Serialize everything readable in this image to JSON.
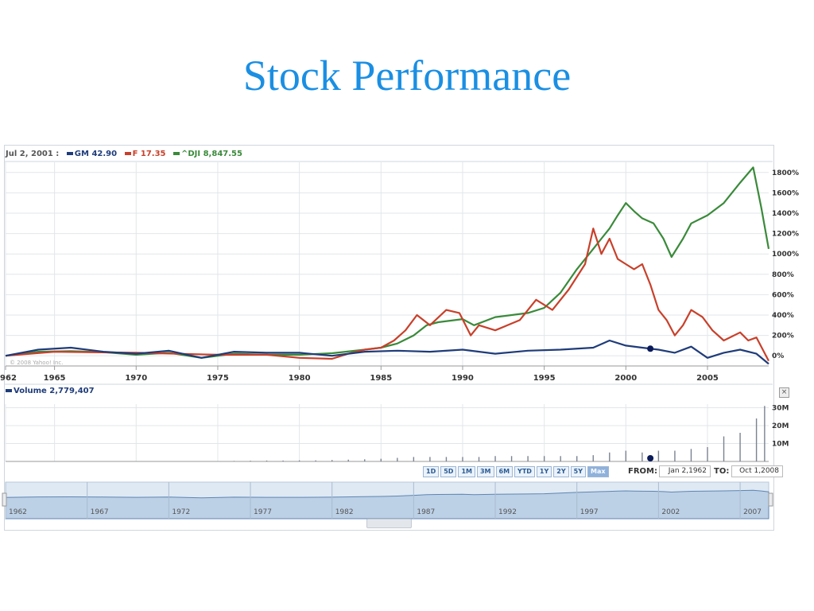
{
  "title": "Stock Performance",
  "legend": {
    "date": "Jul 2, 2001 :",
    "items": [
      {
        "label": "GM 42.90",
        "color": "#1f3c7a"
      },
      {
        "label": "F 17.35",
        "color": "#c8402a"
      },
      {
        "label": "^DJI 8,847.55",
        "color": "#3a8a3a"
      }
    ]
  },
  "watermark": "© 2008 Yahoo! Inc.",
  "volume_legend": "Volume 2,779,407",
  "close_glyph": "×",
  "controls": {
    "ranges": [
      "1D",
      "5D",
      "1M",
      "3M",
      "6M",
      "YTD",
      "1Y",
      "2Y",
      "5Y",
      "Max"
    ],
    "active_range": "Max",
    "from_label": "FROM:",
    "from_value": "Jan 2,1962",
    "to_label": "TO:",
    "to_value": "Oct 1,2008"
  },
  "colors": {
    "gm": "#1f3c7a",
    "ford": "#c8402a",
    "dji": "#3a8a3a",
    "accent": "#8fb2dc"
  },
  "navigator_labels": [
    "1962",
    "1967",
    "1972",
    "1977",
    "1982",
    "1987",
    "1992",
    "1997",
    "2002",
    "2007"
  ],
  "chart_data": [
    {
      "type": "line",
      "xlabel": "",
      "ylabel": "",
      "x_ticks": [
        "1962",
        "1965",
        "1970",
        "1975",
        "1980",
        "1985",
        "1990",
        "1995",
        "2000",
        "2005"
      ],
      "y_ticks": [
        "1800%",
        "1600%",
        "1400%",
        "1200%",
        "1000%",
        "800%",
        "600%",
        "400%",
        "200%",
        "0%"
      ],
      "ylim": [
        -100,
        1900
      ],
      "xlim": [
        1962,
        2008.75
      ],
      "grid": true,
      "series": [
        {
          "name": "^DJI",
          "color": "#3a8a3a",
          "x": [
            1962,
            1964,
            1966,
            1968,
            1970,
            1972,
            1974,
            1976,
            1978,
            1980,
            1982,
            1984,
            1985,
            1986,
            1987,
            1987.8,
            1988.5,
            1990,
            1990.7,
            1992,
            1994,
            1995,
            1996,
            1997,
            1998,
            1998.5,
            1999,
            1999.5,
            2000,
            2000.5,
            2001,
            2001.7,
            2002.3,
            2002.8,
            2003.5,
            2004,
            2005,
            2006,
            2007,
            2007.8,
            2008.3,
            2008.75
          ],
          "y": [
            0,
            40,
            45,
            35,
            10,
            30,
            -20,
            20,
            10,
            10,
            25,
            60,
            80,
            120,
            200,
            300,
            330,
            360,
            300,
            380,
            420,
            470,
            620,
            850,
            1050,
            1150,
            1250,
            1380,
            1500,
            1420,
            1350,
            1300,
            1150,
            970,
            1150,
            1300,
            1380,
            1500,
            1700,
            1850,
            1450,
            1050
          ]
        },
        {
          "name": "F",
          "color": "#c8402a",
          "x": [
            1962,
            1965,
            1970,
            1975,
            1978,
            1980,
            1982,
            1983,
            1984,
            1985,
            1985.8,
            1986.5,
            1987.2,
            1988,
            1989,
            1989.8,
            1990.5,
            1991,
            1992,
            1993.5,
            1994.5,
            1995.5,
            1996.5,
            1997.5,
            1998,
            1998.5,
            1999,
            1999.5,
            2000,
            2000.5,
            2001,
            2001.5,
            2002,
            2002.5,
            2003,
            2003.5,
            2004,
            2004.7,
            2005.3,
            2006,
            2007,
            2007.5,
            2008,
            2008.75
          ],
          "y": [
            0,
            40,
            30,
            10,
            10,
            -20,
            -30,
            20,
            60,
            80,
            150,
            250,
            400,
            300,
            450,
            420,
            200,
            300,
            250,
            350,
            550,
            450,
            650,
            900,
            1250,
            1000,
            1150,
            950,
            900,
            850,
            900,
            700,
            450,
            350,
            200,
            300,
            450,
            380,
            250,
            150,
            230,
            150,
            180,
            -50
          ]
        },
        {
          "name": "GM",
          "color": "#1f3c7a",
          "x": [
            1962,
            1964,
            1966,
            1968,
            1970,
            1972,
            1974,
            1976,
            1978,
            1980,
            1982,
            1984,
            1986,
            1988,
            1990,
            1992,
            1994,
            1996,
            1998,
            1999,
            2000,
            2001,
            2002,
            2003,
            2004,
            2005,
            2006,
            2007,
            2008,
            2008.75
          ],
          "y": [
            0,
            60,
            80,
            40,
            20,
            50,
            -20,
            40,
            30,
            30,
            0,
            40,
            50,
            40,
            60,
            20,
            50,
            60,
            80,
            150,
            100,
            80,
            60,
            30,
            90,
            -20,
            30,
            60,
            20,
            -80
          ]
        }
      ]
    },
    {
      "type": "bar",
      "name": "Volume",
      "y_ticks": [
        "30M",
        "20M",
        "10M"
      ],
      "ylim": [
        0,
        32
      ],
      "x": [
        1976,
        1977,
        1978,
        1979,
        1980,
        1981,
        1982,
        1983,
        1984,
        1985,
        1986,
        1987,
        1988,
        1989,
        1990,
        1991,
        1992,
        1993,
        1994,
        1995,
        1996,
        1997,
        1998,
        1999,
        2000,
        2001,
        2002,
        2003,
        2004,
        2005,
        2006,
        2007,
        2008,
        2008.5
      ],
      "values": [
        0.3,
        0.4,
        0.5,
        0.5,
        0.6,
        0.6,
        0.8,
        1,
        1.2,
        1.5,
        2,
        2.5,
        2.5,
        2.5,
        2.5,
        2.5,
        3,
        3,
        3,
        3,
        3,
        3,
        3.5,
        5,
        6,
        5,
        6,
        6,
        7,
        8,
        14,
        16,
        24,
        31
      ]
    }
  ]
}
